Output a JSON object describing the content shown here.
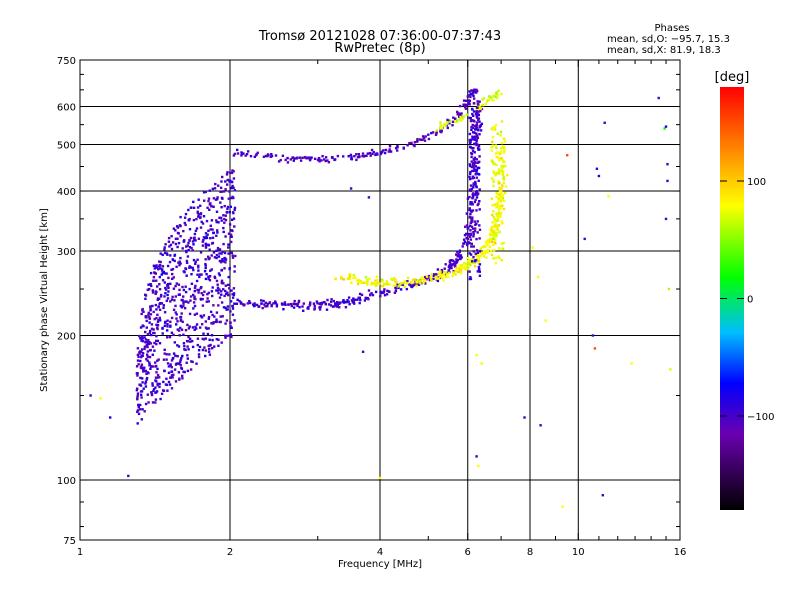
{
  "chart_data": {
    "type": "scatter",
    "title": "Tromsø 20121028 07:36:00-07:37:43",
    "subtitle": "RwPretec (8p)",
    "xlabel": "Frequency [MHz]",
    "ylabel": "Stationary phase Virtual Height [km]",
    "x_scale": "log",
    "y_scale": "log",
    "xlim": [
      1,
      16
    ],
    "ylim": [
      75,
      750
    ],
    "x_ticks": [
      1,
      2,
      4,
      6,
      8,
      10,
      16
    ],
    "x_tick_labels": [
      "1",
      "2",
      "4",
      "6",
      "8",
      "10",
      "16"
    ],
    "x_minor": [
      3,
      5,
      7,
      9,
      11,
      12,
      13,
      14,
      15
    ],
    "y_ticks": [
      75,
      100,
      200,
      300,
      400,
      500,
      600,
      750
    ],
    "y_tick_labels": [
      "75",
      "100",
      "200",
      "300",
      "400",
      "500",
      "600",
      "750"
    ],
    "grid": true,
    "phases_box": {
      "title": "Phases",
      "line1": "mean, sd,O: −95.7, 15.3",
      "line2": "mean, sd,X: 81.9, 18.3"
    },
    "colorbar": {
      "label": "[deg]",
      "range": [
        -180,
        180
      ],
      "ticks": [
        100,
        0,
        -100
      ],
      "tick_labels": [
        "100",
        "0",
        "−100"
      ]
    },
    "clusters": [
      {
        "note": "low layer O blue",
        "kind": "band",
        "f0": 1.3,
        "f1": 2.05,
        "hlo0": 130,
        "hlo1": 200,
        "hhi0": 160,
        "hhi1": 450,
        "n": 900,
        "phase": -100
      },
      {
        "note": "F-layer O trace",
        "kind": "curve",
        "pts": [
          [
            2.05,
            235
          ],
          [
            2.5,
            232
          ],
          [
            3.0,
            230
          ],
          [
            3.5,
            235
          ],
          [
            4.0,
            245
          ],
          [
            4.6,
            255
          ],
          [
            5.2,
            265
          ],
          [
            5.7,
            285
          ],
          [
            6.0,
            320
          ],
          [
            6.15,
            400
          ],
          [
            6.25,
            500
          ],
          [
            6.3,
            600
          ]
        ],
        "n": 380,
        "sd": 0.02,
        "phase": -100
      },
      {
        "note": "F-layer X trace",
        "kind": "curve",
        "pts": [
          [
            3.3,
            265
          ],
          [
            3.8,
            258
          ],
          [
            4.4,
            256
          ],
          [
            5.0,
            262
          ],
          [
            5.6,
            270
          ],
          [
            6.1,
            285
          ],
          [
            6.5,
            300
          ],
          [
            6.8,
            330
          ],
          [
            7.0,
            380
          ],
          [
            7.05,
            430
          ],
          [
            7.1,
            500
          ]
        ],
        "n": 320,
        "sd": 0.022,
        "phase": 80
      },
      {
        "note": "upper O trace",
        "kind": "curve",
        "pts": [
          [
            2.05,
            480
          ],
          [
            2.5,
            470
          ],
          [
            3.0,
            465
          ],
          [
            3.5,
            470
          ],
          [
            4.0,
            480
          ],
          [
            4.6,
            500
          ],
          [
            5.2,
            530
          ],
          [
            5.7,
            570
          ],
          [
            6.0,
            610
          ],
          [
            6.2,
            650
          ]
        ],
        "n": 200,
        "sd": 0.015,
        "phase": -105
      },
      {
        "note": "upper X trace",
        "kind": "curve",
        "pts": [
          [
            5.2,
            540
          ],
          [
            5.7,
            560
          ],
          [
            6.2,
            590
          ],
          [
            6.6,
            620
          ],
          [
            6.9,
            640
          ]
        ],
        "n": 60,
        "sd": 0.015,
        "phase": 70
      },
      {
        "note": "O spread column",
        "kind": "column",
        "f0": 6.05,
        "f1": 6.35,
        "h0": 260,
        "h1": 650,
        "n": 160,
        "phase": -100
      },
      {
        "note": "X spread column",
        "kind": "column",
        "f0": 6.7,
        "f1": 7.1,
        "h0": 280,
        "h1": 560,
        "n": 100,
        "phase": 75
      }
    ],
    "scattered_points": [
      [
        1.05,
        150,
        -95
      ],
      [
        1.1,
        148,
        80
      ],
      [
        1.25,
        102,
        -100
      ],
      [
        1.15,
        135,
        -90
      ],
      [
        3.8,
        388,
        -100
      ],
      [
        3.5,
        405,
        -95
      ],
      [
        3.7,
        185,
        -100
      ],
      [
        4.0,
        101,
        80
      ],
      [
        6.25,
        182,
        80
      ],
      [
        6.4,
        175,
        75
      ],
      [
        6.3,
        107,
        80
      ],
      [
        6.25,
        112,
        -100
      ],
      [
        7.8,
        135,
        -95
      ],
      [
        8.1,
        305,
        80
      ],
      [
        8.3,
        265,
        80
      ],
      [
        8.6,
        215,
        80
      ],
      [
        8.4,
        130,
        -100
      ],
      [
        9.3,
        88,
        80
      ],
      [
        9.5,
        475,
        150
      ],
      [
        10.3,
        318,
        -100
      ],
      [
        10.7,
        200,
        -100
      ],
      [
        10.8,
        188,
        150
      ],
      [
        10.9,
        445,
        -95
      ],
      [
        11.0,
        430,
        -90
      ],
      [
        11.3,
        555,
        -95
      ],
      [
        11.5,
        390,
        80
      ],
      [
        11.2,
        93,
        -100
      ],
      [
        12.8,
        175,
        80
      ],
      [
        14.5,
        625,
        -100
      ],
      [
        14.9,
        540,
        20
      ],
      [
        15.0,
        545,
        -85
      ],
      [
        15.1,
        455,
        -100
      ],
      [
        15.1,
        420,
        -95
      ],
      [
        15.0,
        350,
        -100
      ],
      [
        15.2,
        250,
        60
      ],
      [
        15.3,
        170,
        70
      ]
    ]
  }
}
